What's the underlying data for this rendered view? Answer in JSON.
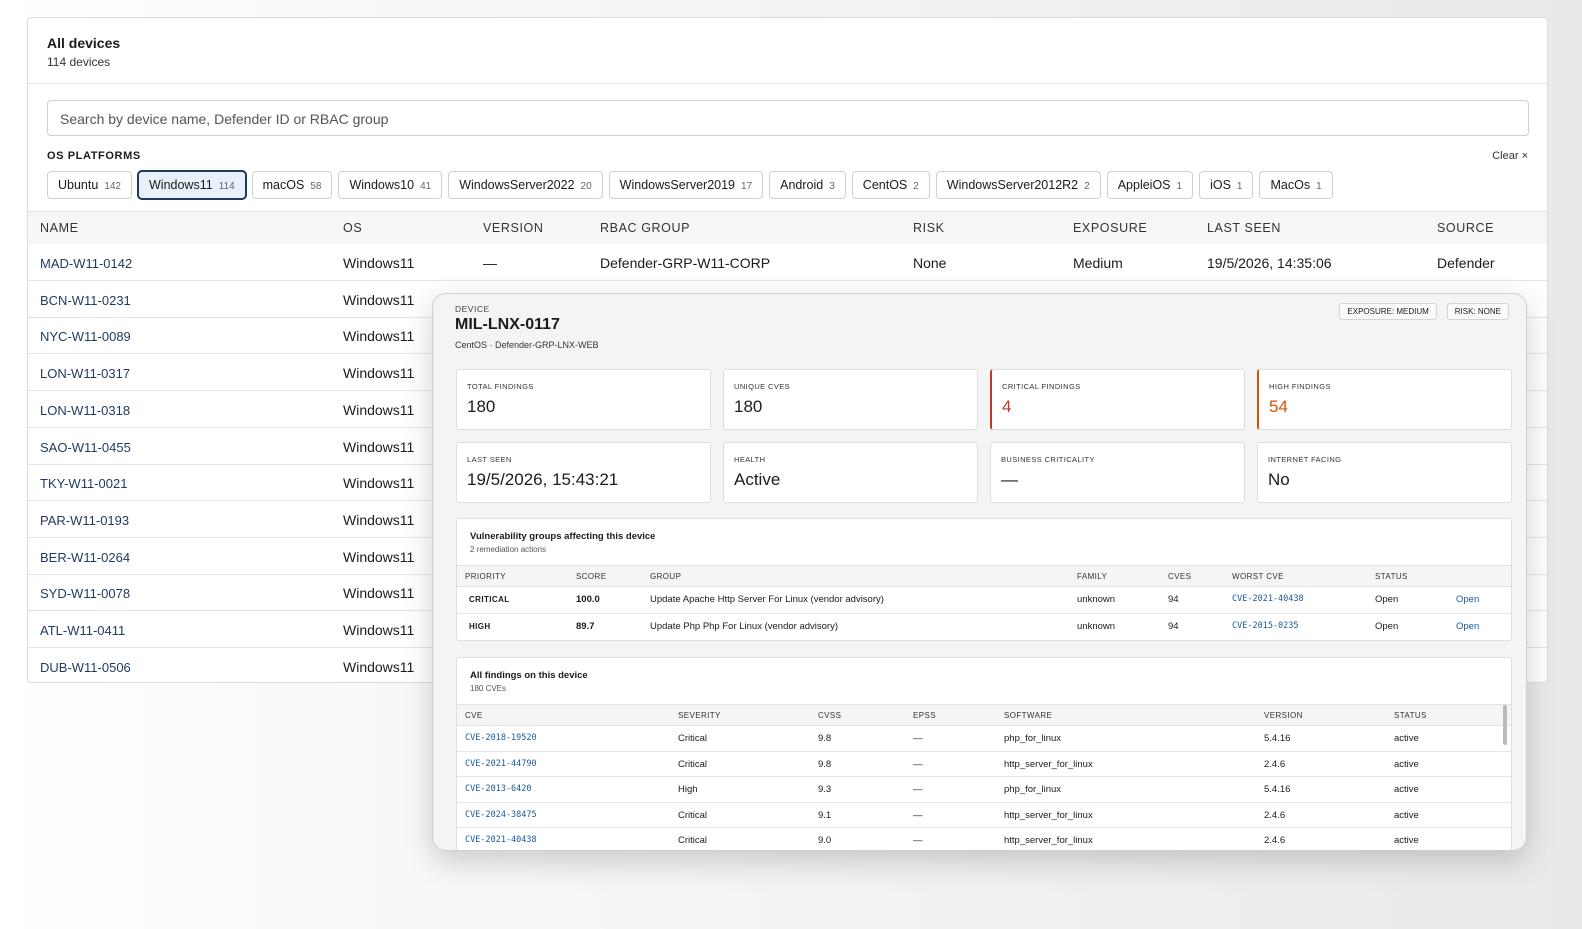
{
  "header": {
    "title": "All devices",
    "subtitle": "114 devices"
  },
  "search": {
    "placeholder": "Search by device name, Defender ID or RBAC group"
  },
  "filters": {
    "label": "OS PLATFORMS",
    "clear": "Clear",
    "chips": [
      {
        "name": "Ubuntu",
        "count": 142
      },
      {
        "name": "Windows11",
        "count": 114
      },
      {
        "name": "macOS",
        "count": 58
      },
      {
        "name": "Windows10",
        "count": 41
      },
      {
        "name": "WindowsServer2022",
        "count": 20
      },
      {
        "name": "WindowsServer2019",
        "count": 17
      },
      {
        "name": "Android",
        "count": 3
      },
      {
        "name": "CentOS",
        "count": 2
      },
      {
        "name": "WindowsServer2012R2",
        "count": 2
      },
      {
        "name": "AppleiOS",
        "count": 1
      },
      {
        "name": "iOS",
        "count": 1
      },
      {
        "name": "MacOs",
        "count": 1
      }
    ]
  },
  "table": {
    "columns": [
      "NAME",
      "OS",
      "VERSION",
      "RBAC GROUP",
      "RISK",
      "EXPOSURE",
      "LAST SEEN",
      "SOURCE"
    ],
    "rows": [
      [
        "MAD-W11-0142",
        "Windows11",
        "—",
        "Defender-GRP-W11-CORP",
        "None",
        "Medium",
        "19/5/2026, 14:35:06",
        "Defender"
      ],
      [
        "BCN-W11-0231",
        "Windows11"
      ],
      [
        "NYC-W11-0089",
        "Windows11"
      ],
      [
        "LON-W11-0317",
        "Windows11"
      ],
      [
        "LON-W11-0318",
        "Windows11"
      ],
      [
        "SAO-W11-0455",
        "Windows11"
      ],
      [
        "TKY-W11-0021",
        "Windows11"
      ],
      [
        "PAR-W11-0193",
        "Windows11"
      ],
      [
        "BER-W11-0264",
        "Windows11"
      ],
      [
        "SYD-W11-0078",
        "Windows11"
      ],
      [
        "ATL-W11-0411",
        "Windows11"
      ],
      [
        "DUB-W11-0506",
        "Windows11"
      ]
    ]
  },
  "modal": {
    "label": "DEVICE",
    "title": "MIL-LNX-0117",
    "subtitle": "CentOS · Defender-GRP-LNX-WEB",
    "badges": [
      "EXPOSURE: MEDIUM",
      "RISK: NONE"
    ],
    "stats": [
      {
        "label": "TOTAL FINDINGS",
        "value": "180"
      },
      {
        "label": "UNIQUE CVES",
        "value": "180"
      },
      {
        "label": "CRITICAL FINDINGS",
        "value": "4"
      },
      {
        "label": "HIGH FINDINGS",
        "value": "54"
      },
      {
        "label": "LAST SEEN",
        "value": "19/5/2026, 15:43:21"
      },
      {
        "label": "HEALTH",
        "value": "Active"
      },
      {
        "label": "BUSINESS CRITICALITY",
        "value": "—"
      },
      {
        "label": "INTERNET FACING",
        "value": "No"
      }
    ],
    "groups": {
      "title": "Vulnerability groups affecting this device",
      "subtitle": "2 remediation actions",
      "columns": [
        "PRIORITY",
        "SCORE",
        "GROUP",
        "FAMILY",
        "CVES",
        "WORST CVE",
        "STATUS",
        null
      ],
      "rows": [
        [
          "CRITICAL",
          "100.0",
          "Update Apache Http Server For Linux (vendor advisory)",
          "unknown",
          "94",
          "CVE-2021-40438",
          "Open",
          "Open"
        ],
        [
          "HIGH",
          "89.7",
          "Update Php Php For Linux (vendor advisory)",
          "unknown",
          "94",
          "CVE-2015-0235",
          "Open",
          "Open"
        ]
      ]
    },
    "findings": {
      "title": "All findings on this device",
      "subtitle": "180 CVEs",
      "columns": [
        "CVE",
        "SEVERITY",
        "CVSS",
        "EPSS",
        "SOFTWARE",
        "VERSION",
        "STATUS"
      ],
      "rows": [
        [
          "CVE-2018-19520",
          "Critical",
          "9.8",
          "—",
          "php_for_linux",
          "5.4.16",
          "active"
        ],
        [
          "CVE-2021-44790",
          "Critical",
          "9.8",
          "—",
          "http_server_for_linux",
          "2.4.6",
          "active"
        ],
        [
          "CVE-2013-6420",
          "High",
          "9.3",
          "—",
          "php_for_linux",
          "5.4.16",
          "active"
        ],
        [
          "CVE-2024-38475",
          "Critical",
          "9.1",
          "—",
          "http_server_for_linux",
          "2.4.6",
          "active"
        ],
        [
          "CVE-2021-40438",
          "Critical",
          "9.0",
          "—",
          "http_server_for_linux",
          "2.4.6",
          "active"
        ]
      ]
    }
  }
}
